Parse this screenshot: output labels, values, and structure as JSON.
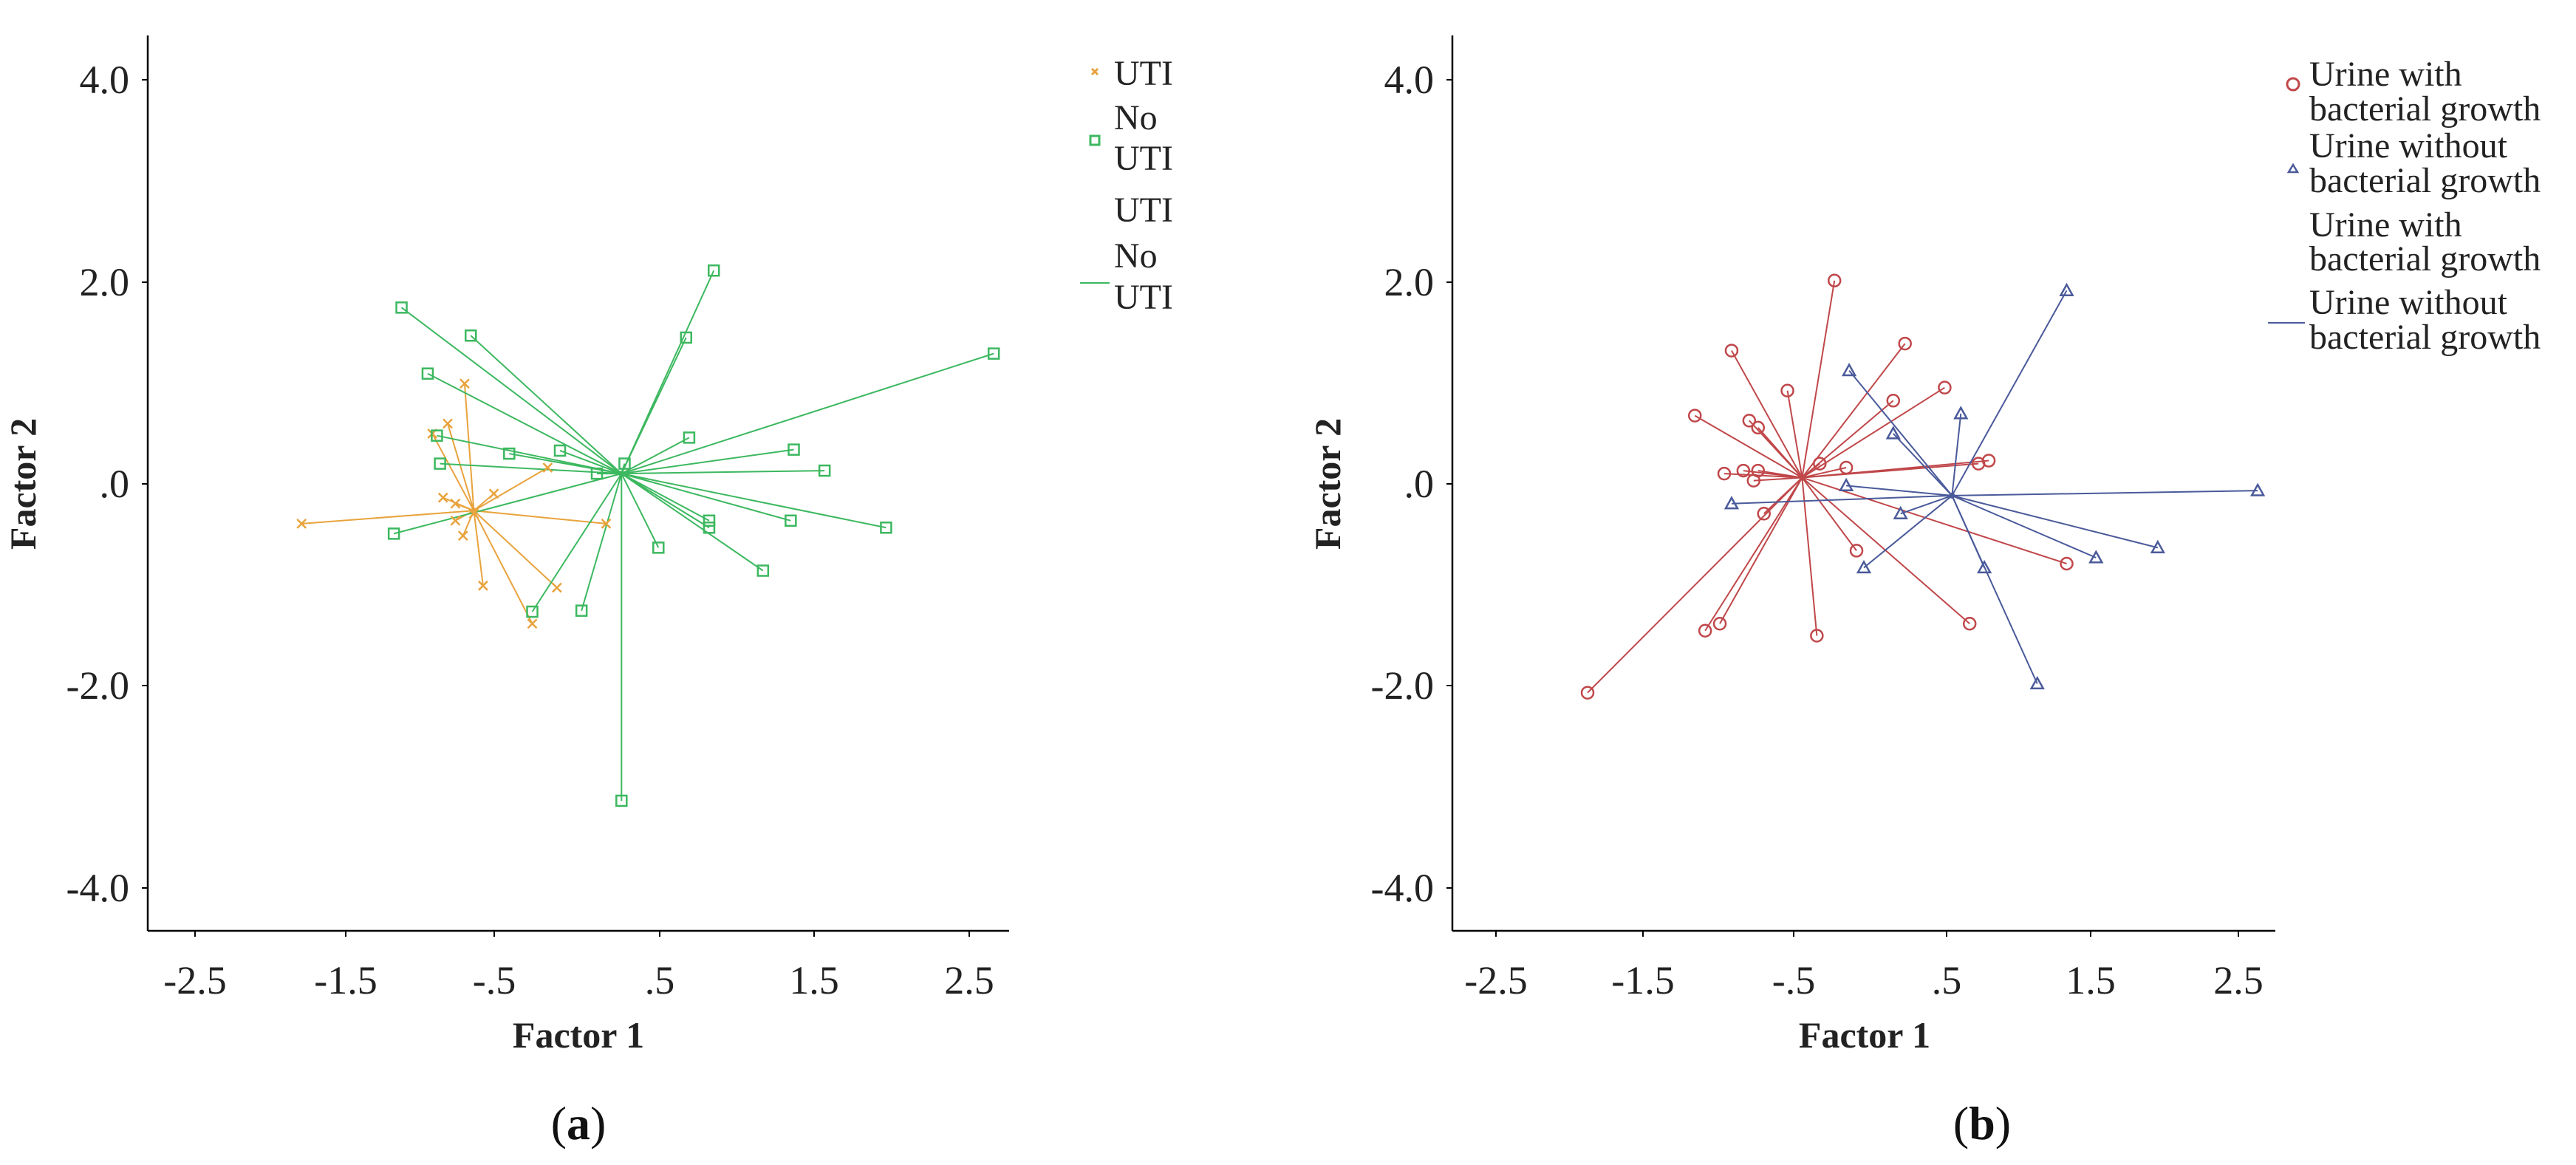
{
  "chart_data": [
    {
      "type": "scatter",
      "panel_label": "a",
      "xlabel": "Factor 1",
      "ylabel": "Factor 2",
      "xlim": [
        -2.8,
        2.8
      ],
      "ylim": [
        -4.45,
        4.5
      ],
      "xticks": [
        -2.5,
        -1.5,
        -0.5,
        0.5,
        1.5,
        2.5
      ],
      "xtick_labels": [
        "-2.5",
        "-1.5",
        "-.5",
        ".5",
        "1.5",
        "2.5"
      ],
      "yticks": [
        4,
        2,
        0,
        -2,
        -4
      ],
      "ytick_labels": [
        "4.0",
        "2.0",
        ".0",
        "-2.0",
        "-4.0"
      ],
      "legend_position": "top-right",
      "legend": [
        {
          "label_lines": [
            "UTI"
          ],
          "marker": "cross",
          "color": "#e8a33d"
        },
        {
          "label_lines": [
            "No",
            "UTI"
          ],
          "marker": "square",
          "color": "#3cb85f"
        },
        {
          "label_lines": [
            "UTI"
          ],
          "marker": "none",
          "color": "#e8a33d"
        },
        {
          "label_lines": [
            "No",
            "UTI"
          ],
          "marker": "line",
          "color": "#3cb85f"
        }
      ],
      "series": [
        {
          "name": "UTI",
          "marker": "cross",
          "color": "#e8a33d",
          "centroid": [
            -0.68,
            -0.25
          ],
          "points": [
            [
              -1.8,
              -0.38
            ],
            [
              -0.74,
              1.02
            ],
            [
              -0.85,
              0.62
            ],
            [
              -0.95,
              0.52
            ],
            [
              -0.88,
              -0.12
            ],
            [
              -0.8,
              -0.18
            ],
            [
              -0.75,
              -0.5
            ],
            [
              -0.68,
              -0.28
            ],
            [
              -0.62,
              -1.0
            ],
            [
              -0.8,
              -0.35
            ],
            [
              -0.55,
              -0.08
            ],
            [
              -0.3,
              -1.38
            ],
            [
              -0.14,
              -1.02
            ],
            [
              0.18,
              -0.38
            ],
            [
              -0.2,
              0.18
            ]
          ]
        },
        {
          "name": "No UTI",
          "marker": "square",
          "color": "#3cb85f",
          "centroid": [
            0.28,
            0.12
          ],
          "points": [
            [
              -1.15,
              1.78
            ],
            [
              -0.98,
              1.12
            ],
            [
              -0.7,
              1.5
            ],
            [
              -0.92,
              0.5
            ],
            [
              -0.9,
              0.22
            ],
            [
              -0.45,
              0.32
            ],
            [
              -0.12,
              0.35
            ],
            [
              -1.2,
              -0.48
            ],
            [
              -0.3,
              -1.26
            ],
            [
              0.02,
              -1.25
            ],
            [
              0.88,
              2.15
            ],
            [
              0.7,
              1.48
            ],
            [
              0.72,
              0.48
            ],
            [
              2.7,
              1.32
            ],
            [
              1.4,
              0.36
            ],
            [
              1.6,
              0.15
            ],
            [
              1.38,
              -0.35
            ],
            [
              0.85,
              -0.42
            ],
            [
              1.2,
              -0.85
            ],
            [
              2.0,
              -0.42
            ],
            [
              0.52,
              -0.62
            ],
            [
              0.28,
              -3.15
            ],
            [
              0.85,
              -0.35
            ],
            [
              0.12,
              0.12
            ],
            [
              0.3,
              0.22
            ]
          ]
        }
      ]
    },
    {
      "type": "scatter",
      "panel_label": "b",
      "xlabel": "Factor 1",
      "ylabel": "Factor 2",
      "xlim": [
        -2.8,
        2.8
      ],
      "ylim": [
        -4.45,
        4.5
      ],
      "xticks": [
        -2.5,
        -1.5,
        -0.5,
        0.5,
        1.5,
        2.5
      ],
      "xtick_labels": [
        "-2.5",
        "-1.5",
        "-.5",
        ".5",
        "1.5",
        "2.5"
      ],
      "yticks": [
        4,
        2,
        0,
        -2,
        -4
      ],
      "ytick_labels": [
        "4.0",
        "2.0",
        ".0",
        "-2.0",
        "-4.0"
      ],
      "legend_position": "top-right",
      "legend": [
        {
          "label_lines": [
            "Urine with",
            "bacterial growth"
          ],
          "marker": "circle",
          "color": "#c0474a"
        },
        {
          "label_lines": [
            "Urine without",
            "bacterial growth"
          ],
          "marker": "triangle",
          "color": "#4a5a9a"
        },
        {
          "label_lines": [
            "Urine with",
            "bacterial growth"
          ],
          "marker": "none",
          "color": "#c0474a"
        },
        {
          "label_lines": [
            "Urine without",
            "bacterial growth"
          ],
          "marker": "line",
          "color": "#4a5a9a"
        }
      ],
      "series": [
        {
          "name": "Urine with bacterial growth",
          "marker": "circle",
          "color": "#c0474a",
          "centroid": [
            -0.42,
            0.08
          ],
          "points": [
            [
              -1.88,
              -2.07
            ],
            [
              -1.15,
              0.7
            ],
            [
              -0.9,
              1.35
            ],
            [
              -0.82,
              0.15
            ],
            [
              -0.78,
              0.65
            ],
            [
              -0.72,
              0.58
            ],
            [
              -0.95,
              0.12
            ],
            [
              -0.75,
              0.05
            ],
            [
              -0.72,
              0.15
            ],
            [
              -0.52,
              0.95
            ],
            [
              -0.68,
              -0.28
            ],
            [
              -1.08,
              -1.45
            ],
            [
              -0.98,
              -1.38
            ],
            [
              -0.32,
              -1.5
            ],
            [
              -0.3,
              0.22
            ],
            [
              -0.2,
              2.05
            ],
            [
              -0.12,
              0.18
            ],
            [
              -0.05,
              -0.65
            ],
            [
              0.2,
              0.85
            ],
            [
              0.28,
              1.42
            ],
            [
              0.55,
              0.98
            ],
            [
              0.85,
              0.25
            ],
            [
              0.78,
              0.22
            ],
            [
              1.38,
              -0.78
            ],
            [
              0.72,
              -1.38
            ]
          ]
        },
        {
          "name": "Urine without bacterial growth",
          "marker": "triangle",
          "color": "#4a5a9a",
          "centroid": [
            0.6,
            -0.1
          ],
          "points": [
            [
              -0.9,
              -0.18
            ],
            [
              -0.12,
              0.0
            ],
            [
              -0.1,
              1.15
            ],
            [
              0.0,
              -0.82
            ],
            [
              0.2,
              0.52
            ],
            [
              0.25,
              -0.28
            ],
            [
              0.66,
              0.72
            ],
            [
              0.82,
              -0.82
            ],
            [
              1.18,
              -1.98
            ],
            [
              1.38,
              1.95
            ],
            [
              1.58,
              -0.72
            ],
            [
              2.0,
              -0.62
            ],
            [
              2.68,
              -0.05
            ]
          ]
        }
      ]
    }
  ]
}
